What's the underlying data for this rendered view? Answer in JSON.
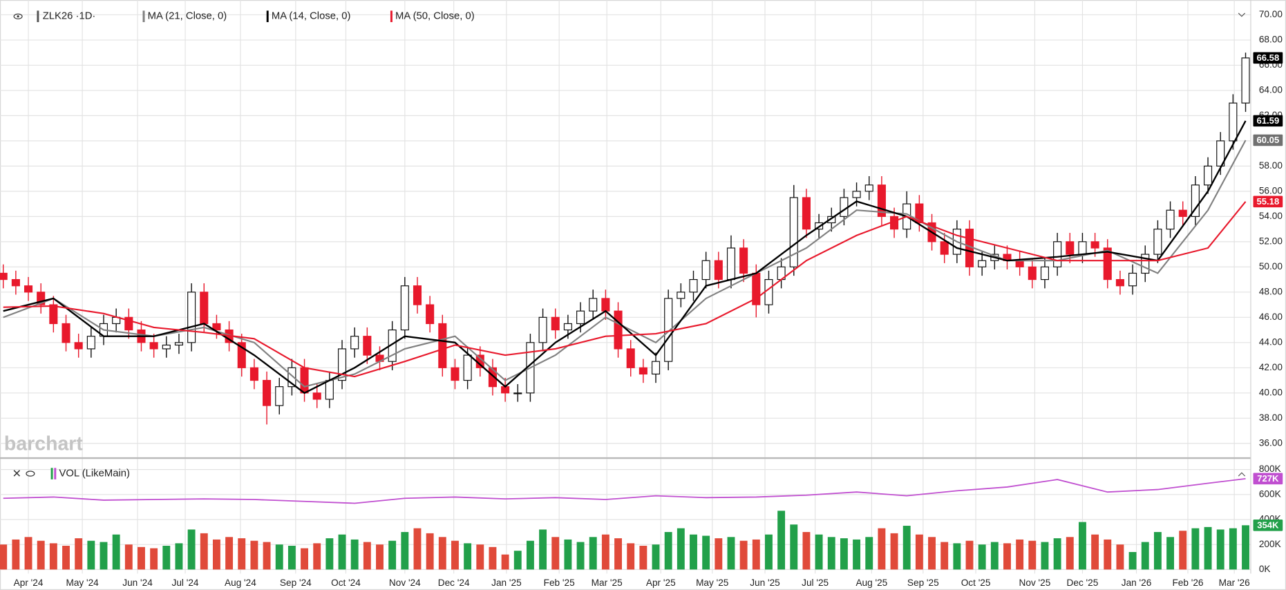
{
  "chart_data": [
    {
      "type": "candlestick",
      "title": "ZLK26 ·1D·",
      "watermark": "barchart",
      "up_color": "#111111",
      "down_color": "#e8192c",
      "open": [
        49.5,
        49,
        48.5,
        48,
        47,
        45.5,
        44,
        43.5,
        44.5,
        45.5,
        46,
        45,
        44,
        43.5,
        43.8,
        44,
        48,
        45.5,
        45,
        44,
        42,
        41,
        39,
        40.5,
        42,
        40,
        39.5,
        41,
        43.5,
        44.5,
        43,
        42.5,
        45,
        48.5,
        47,
        45.5,
        42,
        41,
        43,
        42,
        40.5,
        40,
        40,
        44,
        46,
        45,
        45.5,
        46.5,
        47.5,
        46.5,
        43.5,
        42,
        41.5,
        42.5,
        47.5,
        48,
        49,
        50.5,
        49,
        51.5,
        49.5,
        47,
        49,
        50,
        55.5,
        53,
        53.5,
        54,
        55.5,
        56,
        56.5,
        54,
        53,
        55,
        53.5,
        52,
        51,
        53,
        50,
        50.5,
        51,
        50.5,
        50,
        49,
        50,
        52,
        51,
        52,
        51.5,
        49,
        48.5,
        49.5,
        51,
        53,
        54.5,
        54,
        56.5,
        58,
        60,
        63
      ],
      "high": [
        50.2,
        49.7,
        49.2,
        48.7,
        47.7,
        46.2,
        44.7,
        45.2,
        46.2,
        46.7,
        46.7,
        45.7,
        44.7,
        44.5,
        44.7,
        48.7,
        48.7,
        46.2,
        45.7,
        44.7,
        42.7,
        41.7,
        41.2,
        42.7,
        42.7,
        40.7,
        41.7,
        44.2,
        45.2,
        45.2,
        43.7,
        45.7,
        49.2,
        49.2,
        47.7,
        46.2,
        42.7,
        43.7,
        43.7,
        42.7,
        41.2,
        40.7,
        44.7,
        46.7,
        46.7,
        46.2,
        47.2,
        48.2,
        48.2,
        47.2,
        44.2,
        42.7,
        43.2,
        48.2,
        48.7,
        49.7,
        51.2,
        51.2,
        52.5,
        52.2,
        50.2,
        49.7,
        50.7,
        56.5,
        56.2,
        54.2,
        54.7,
        56.2,
        56.7,
        57.2,
        57.2,
        54.7,
        56,
        55.7,
        54.2,
        52.7,
        53.7,
        53.7,
        51.2,
        51.7,
        51.7,
        51.2,
        50.7,
        50.7,
        52.7,
        52.7,
        52.7,
        52.7,
        52.2,
        49.7,
        50.2,
        51.7,
        53.7,
        55.2,
        55.2,
        57.2,
        58.7,
        60.7,
        63.7,
        67
      ],
      "low": [
        48.3,
        47.8,
        47.3,
        46.3,
        44.8,
        43.3,
        42.8,
        42.8,
        43.8,
        44.8,
        44.3,
        43.3,
        42.8,
        42.8,
        43.1,
        43.3,
        44.8,
        44.3,
        43.3,
        41.3,
        40.3,
        37.5,
        38.3,
        39.8,
        39.3,
        38.8,
        38.8,
        40.3,
        42.8,
        42.3,
        41.8,
        41.8,
        44.3,
        46.3,
        44.8,
        41.3,
        40.3,
        40.3,
        41.3,
        39.8,
        39.3,
        39.3,
        39.3,
        43.3,
        44.3,
        44.3,
        44.8,
        45.8,
        45.8,
        42.8,
        41.3,
        40.8,
        40.8,
        41.8,
        46.8,
        47.3,
        48.3,
        48.3,
        48.3,
        48.8,
        46,
        46.3,
        48.3,
        49.3,
        52.3,
        52.3,
        52.8,
        53.3,
        54.8,
        55.3,
        53.3,
        52.3,
        52.3,
        52.8,
        51.3,
        50.3,
        50.3,
        49.3,
        49.3,
        49.8,
        49.8,
        49.3,
        48.3,
        48.3,
        49.3,
        50.3,
        50.3,
        50.8,
        48.3,
        47.8,
        47.8,
        48.8,
        50.3,
        52.3,
        53.3,
        53.3,
        55.8,
        57.3,
        59.3,
        62.3
      ],
      "close": [
        49,
        48.5,
        48,
        47,
        45.5,
        44,
        43.5,
        44.5,
        45.5,
        46,
        45,
        44,
        43.5,
        43.8,
        44,
        48,
        45.5,
        45,
        44,
        42,
        41,
        39,
        40.5,
        42,
        40,
        39.5,
        41,
        43.5,
        44.5,
        43,
        42.5,
        45,
        48.5,
        47,
        45.5,
        42,
        41,
        43,
        42,
        40.5,
        40,
        40,
        44,
        46,
        45,
        45.5,
        46.5,
        47.5,
        46.5,
        43.5,
        42,
        41.5,
        42.5,
        47.5,
        48,
        49,
        50.5,
        49,
        51.5,
        49.5,
        47,
        49,
        50,
        55.5,
        53,
        53.5,
        54,
        55.5,
        56,
        56.5,
        54,
        53,
        55,
        53.5,
        52,
        51,
        53,
        50,
        50.5,
        51,
        50.5,
        50,
        49,
        50,
        52,
        51,
        52,
        51.5,
        49,
        48.5,
        49.5,
        51,
        53,
        54.5,
        54,
        56.5,
        58,
        60,
        63,
        66.58
      ],
      "series": [
        {
          "name": "MA (21, Close, 0)",
          "color": "#808080",
          "x": [
            0,
            4,
            8,
            12,
            16,
            20,
            24,
            28,
            32,
            36,
            40,
            44,
            48,
            52,
            56,
            60,
            64,
            68,
            72,
            76,
            80,
            84,
            88,
            92,
            96,
            99
          ],
          "values": [
            46,
            47.5,
            45,
            44.5,
            45.2,
            44,
            40.5,
            41.5,
            43.5,
            44.5,
            41,
            43,
            46,
            44,
            47.5,
            49.5,
            51.5,
            54.5,
            54.2,
            52,
            50.5,
            50.5,
            51.3,
            49.5,
            54.5,
            60.05
          ]
        },
        {
          "name": "MA (14, Close, 0)",
          "color": "#000000",
          "x": [
            0,
            4,
            8,
            12,
            16,
            20,
            24,
            28,
            32,
            36,
            40,
            44,
            48,
            52,
            56,
            60,
            64,
            68,
            72,
            76,
            80,
            84,
            88,
            92,
            96,
            99
          ],
          "values": [
            46.5,
            47.5,
            44.5,
            44.5,
            45.5,
            43,
            40,
            42,
            44.5,
            44,
            40.5,
            44,
            46.5,
            43,
            48.5,
            49.5,
            52.5,
            55.2,
            54,
            51.5,
            50.5,
            50.8,
            51.2,
            50.5,
            56,
            61.59
          ]
        },
        {
          "name": "MA (50, Close, 0)",
          "color": "#e8192c",
          "x": [
            0,
            4,
            8,
            12,
            16,
            20,
            24,
            28,
            32,
            36,
            40,
            44,
            48,
            52,
            56,
            60,
            64,
            68,
            72,
            76,
            80,
            84,
            88,
            92,
            96,
            99
          ],
          "values": [
            46.8,
            46.9,
            46.3,
            45.2,
            44.8,
            44.3,
            42,
            41.3,
            42.5,
            43.8,
            43,
            43.5,
            44.5,
            44.7,
            45.5,
            47.5,
            50.5,
            52.5,
            54,
            52.5,
            51.5,
            50.5,
            50.5,
            50.5,
            51.5,
            55.18
          ]
        }
      ],
      "xlim": [
        -0.26,
        99.41
      ],
      "xticks": [
        {
          "value": 2,
          "label": "Apr '24"
        },
        {
          "value": 6.3,
          "label": "May '24"
        },
        {
          "value": 10.7,
          "label": "Jun '24"
        },
        {
          "value": 14.5,
          "label": "Jul '24"
        },
        {
          "value": 18.9,
          "label": "Aug '24"
        },
        {
          "value": 23.3,
          "label": "Sep '24"
        },
        {
          "value": 27.3,
          "label": "Oct '24"
        },
        {
          "value": 32,
          "label": "Nov '24"
        },
        {
          "value": 35.9,
          "label": "Dec '24"
        },
        {
          "value": 40.1,
          "label": "Jan '25"
        },
        {
          "value": 44.3,
          "label": "Feb '25"
        },
        {
          "value": 48.1,
          "label": "Mar '25"
        },
        {
          "value": 52.4,
          "label": "Apr '25"
        },
        {
          "value": 56.5,
          "label": "May '25"
        },
        {
          "value": 60.7,
          "label": "Jun '25"
        },
        {
          "value": 64.7,
          "label": "Jul '25"
        },
        {
          "value": 69.2,
          "label": "Aug '25"
        },
        {
          "value": 73.3,
          "label": "Sep '25"
        },
        {
          "value": 77.5,
          "label": "Oct '25"
        },
        {
          "value": 82.2,
          "label": "Nov '25"
        },
        {
          "value": 86,
          "label": "Dec '25"
        },
        {
          "value": 90.3,
          "label": "Jan '26"
        },
        {
          "value": 94.4,
          "label": "Feb '26"
        },
        {
          "value": 98.1,
          "label": "Mar '26"
        }
      ],
      "ylim": [
        34.9,
        70.85
      ],
      "yticks": [
        {
          "value": 36,
          "label": "36.00"
        },
        {
          "value": 38,
          "label": "38.00"
        },
        {
          "value": 40,
          "label": "40.00"
        },
        {
          "value": 42,
          "label": "42.00"
        },
        {
          "value": 44,
          "label": "44.00"
        },
        {
          "value": 46,
          "label": "46.00"
        },
        {
          "value": 48,
          "label": "48.00"
        },
        {
          "value": 50,
          "label": "50.00"
        },
        {
          "value": 52,
          "label": "52.00"
        },
        {
          "value": 54,
          "label": "54.00"
        },
        {
          "value": 56,
          "label": "56.00"
        },
        {
          "value": 58,
          "label": "58.00"
        },
        {
          "value": 60,
          "label": "60.00"
        },
        {
          "value": 62,
          "label": "62.00"
        },
        {
          "value": 64,
          "label": "64.00"
        },
        {
          "value": 66,
          "label": "66.00"
        },
        {
          "value": 68,
          "label": "68.00"
        },
        {
          "value": 70,
          "label": "70.00"
        }
      ],
      "grid": true
    },
    {
      "type": "bar",
      "title": "VOL (LikeMain)",
      "up_color": "#22a04a",
      "down_color": "#e04a3a",
      "values": [
        200000,
        240000,
        260000,
        230000,
        210000,
        190000,
        250000,
        230000,
        220000,
        280000,
        200000,
        180000,
        170000,
        190000,
        210000,
        320000,
        290000,
        240000,
        260000,
        250000,
        230000,
        220000,
        200000,
        190000,
        170000,
        210000,
        250000,
        280000,
        240000,
        220000,
        200000,
        230000,
        300000,
        330000,
        290000,
        260000,
        230000,
        210000,
        200000,
        180000,
        120000,
        150000,
        230000,
        320000,
        260000,
        240000,
        220000,
        260000,
        280000,
        250000,
        210000,
        190000,
        200000,
        300000,
        330000,
        280000,
        270000,
        250000,
        260000,
        230000,
        240000,
        280000,
        470000,
        360000,
        300000,
        280000,
        260000,
        250000,
        240000,
        260000,
        330000,
        290000,
        350000,
        280000,
        260000,
        220000,
        210000,
        230000,
        200000,
        220000,
        210000,
        240000,
        230000,
        220000,
        250000,
        260000,
        380000,
        280000,
        240000,
        200000,
        140000,
        220000,
        300000,
        260000,
        310000,
        330000,
        340000,
        320000,
        330000,
        354000
      ],
      "value_labels": [
        null,
        null,
        null,
        null,
        null,
        null,
        null,
        null,
        null,
        null,
        null,
        null,
        null,
        null,
        null,
        null,
        null,
        null,
        null,
        null,
        null,
        null,
        null,
        null,
        null,
        null,
        null,
        null,
        null,
        null,
        null,
        null,
        null,
        null,
        null,
        null,
        null,
        null,
        null,
        null,
        null,
        null,
        null,
        null,
        null,
        null,
        null,
        null,
        null,
        null,
        null,
        null,
        null,
        null,
        null,
        null,
        null,
        null,
        null,
        null,
        null,
        null,
        null,
        null,
        null,
        null,
        null,
        null,
        null,
        null,
        null,
        null,
        null,
        null,
        null,
        null,
        null,
        null,
        null,
        null,
        null,
        null,
        null,
        null,
        null,
        null,
        null,
        null,
        null,
        null,
        null,
        null,
        null,
        null,
        null,
        null,
        null,
        null,
        null,
        "354K"
      ],
      "series": [
        {
          "name": "VOL MA",
          "color": "#c04fd0",
          "x": [
            0,
            4,
            8,
            12,
            16,
            20,
            24,
            28,
            32,
            36,
            40,
            44,
            48,
            52,
            56,
            60,
            64,
            68,
            72,
            76,
            80,
            84,
            88,
            92,
            96,
            99
          ],
          "values": [
            570000,
            580000,
            555000,
            560000,
            565000,
            560000,
            545000,
            530000,
            570000,
            580000,
            565000,
            575000,
            560000,
            590000,
            575000,
            580000,
            595000,
            620000,
            590000,
            630000,
            660000,
            720000,
            620000,
            640000,
            690000,
            727000
          ],
          "value_labels": [
            null,
            null,
            null,
            null,
            null,
            null,
            null,
            null,
            null,
            null,
            null,
            null,
            null,
            null,
            null,
            null,
            null,
            null,
            null,
            null,
            null,
            null,
            null,
            null,
            null,
            "727K"
          ]
        }
      ],
      "ylim": [
        0,
        872000
      ],
      "yticks": [
        {
          "value": 0,
          "label": "0K"
        },
        {
          "value": 200000,
          "label": "200K"
        },
        {
          "value": 400000,
          "label": "400K"
        },
        {
          "value": 600000,
          "label": "600K"
        },
        {
          "value": 800000,
          "label": "800K"
        }
      ]
    }
  ]
}
